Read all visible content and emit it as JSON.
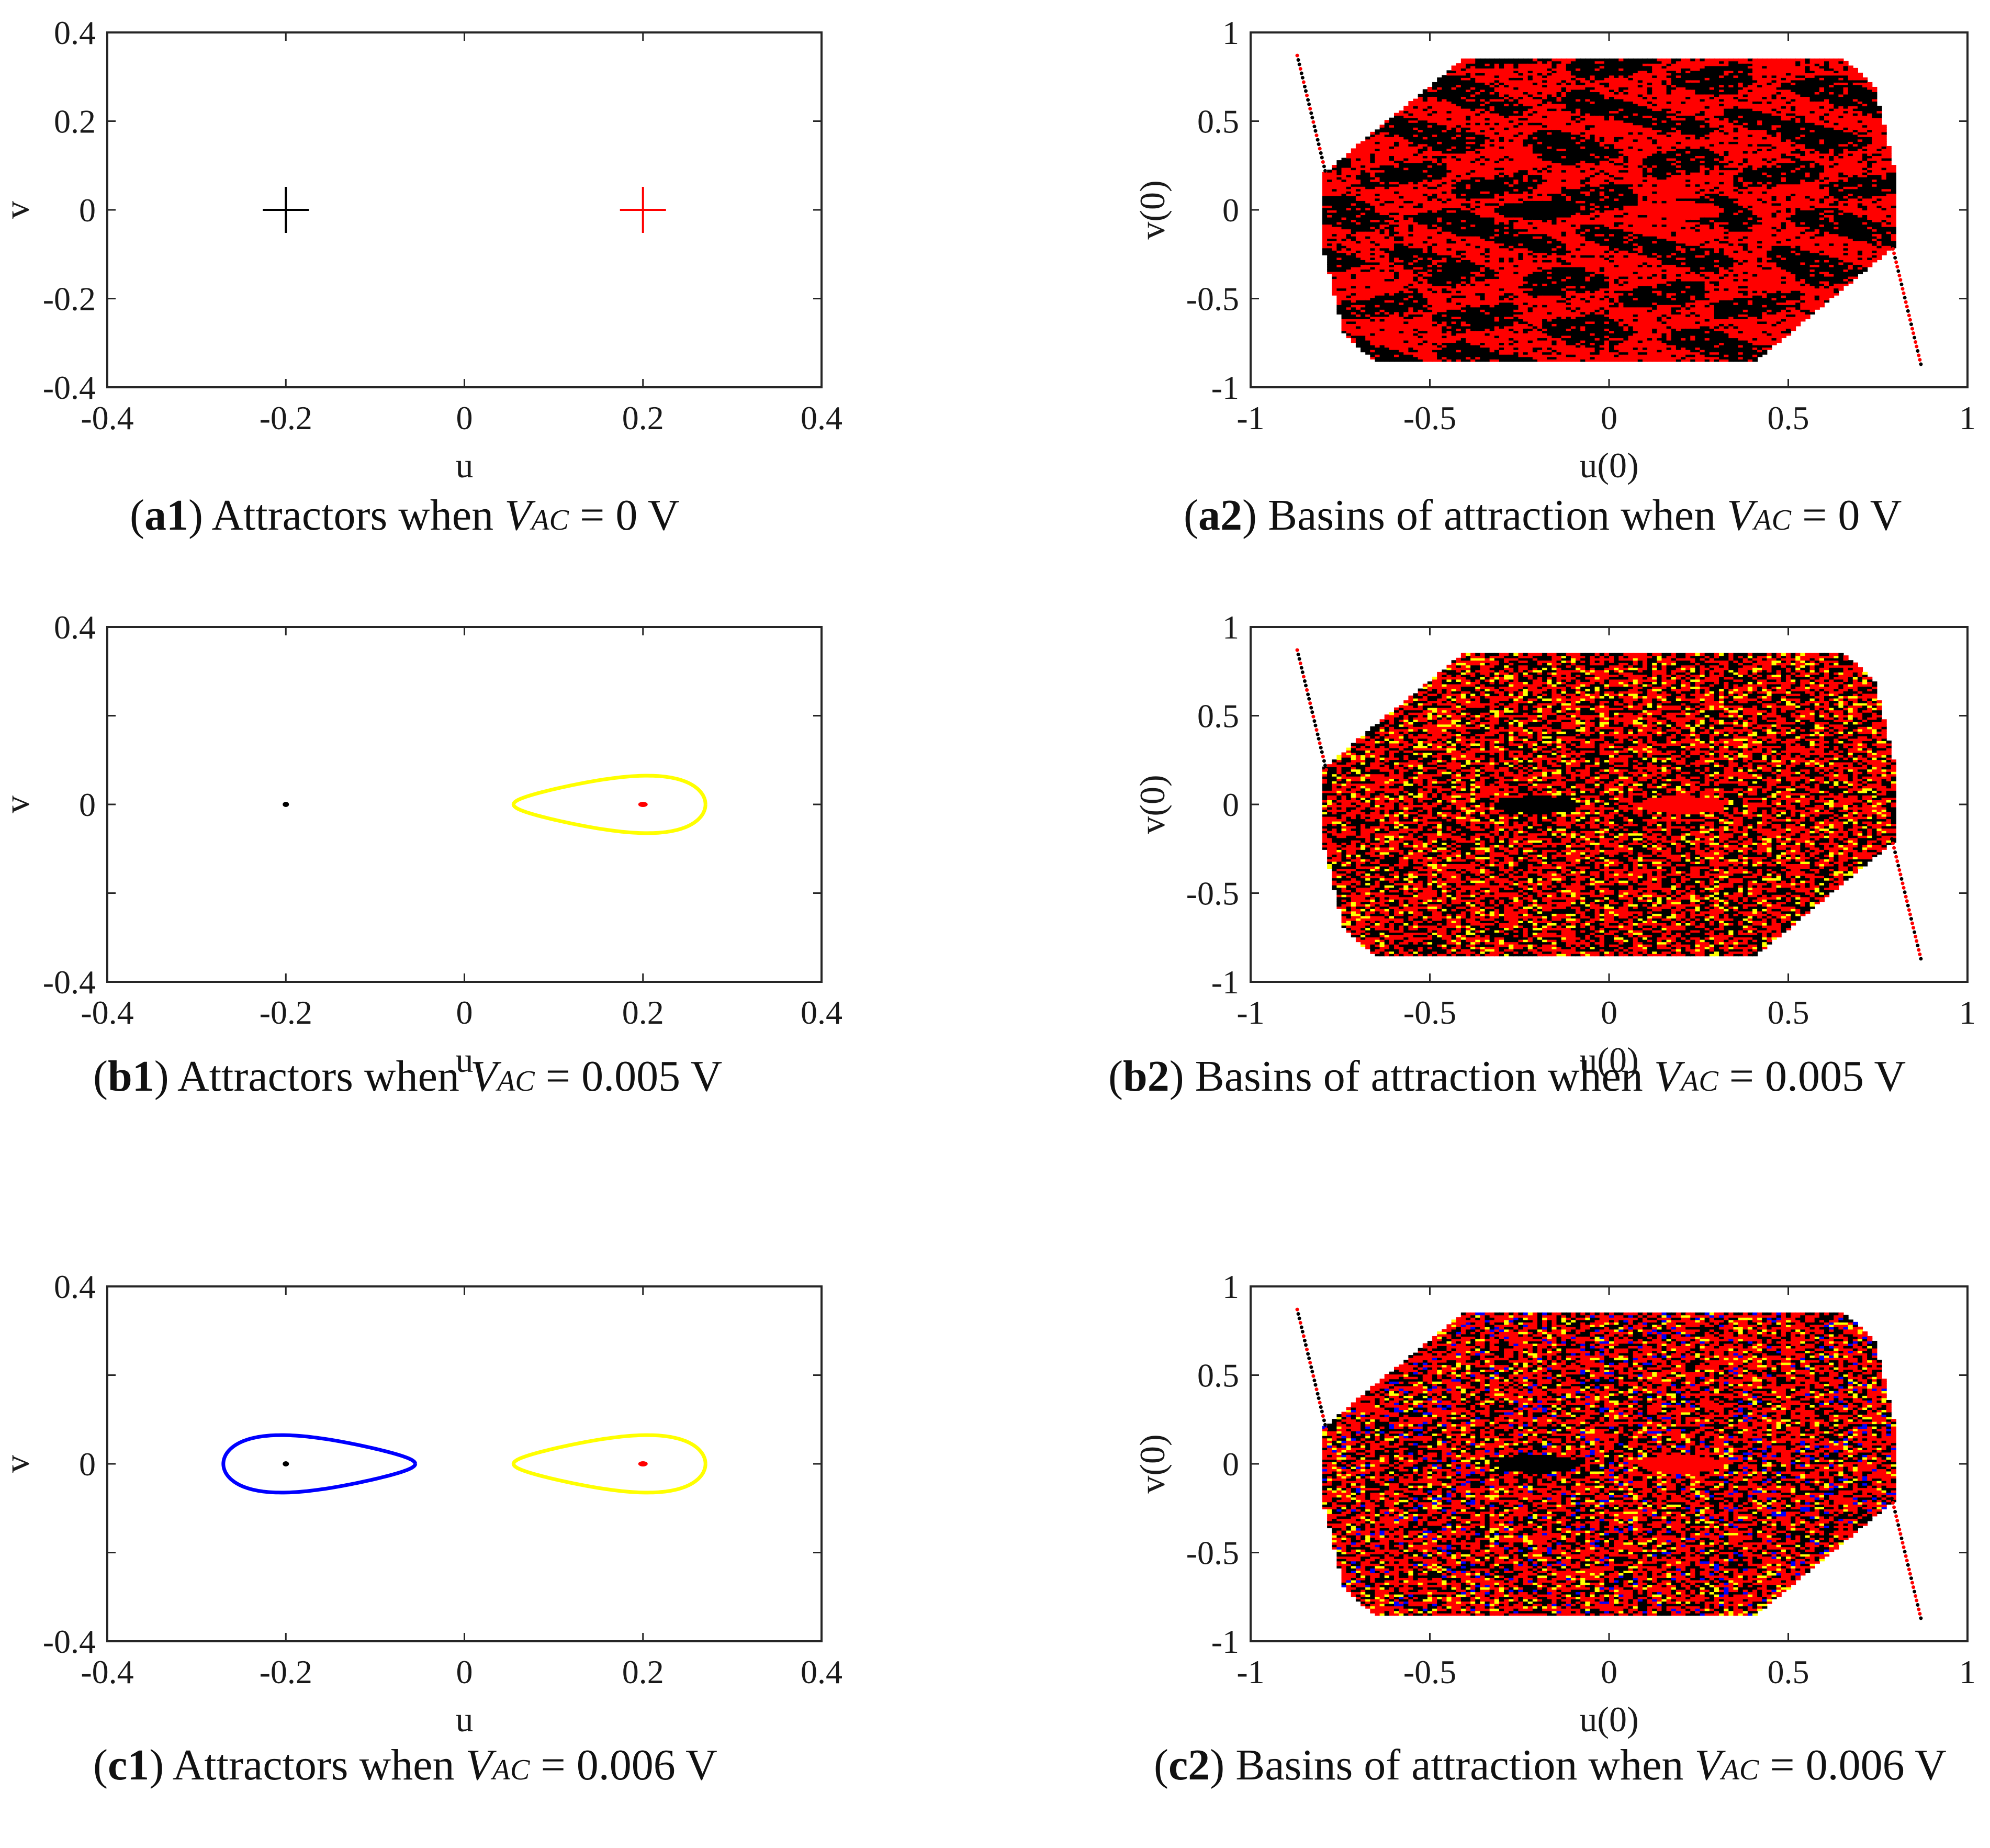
{
  "chart_data": [
    {
      "id": "a1",
      "type": "scatter",
      "caption": {
        "letter": "a1",
        "text": "Attractors when",
        "var": "V",
        "sub": "AC",
        "value": "= 0 V"
      },
      "xlabel": "u",
      "ylabel": "v",
      "xlim": [
        -0.4,
        0.4
      ],
      "ylim": [
        -0.4,
        0.4
      ],
      "xticks": [
        "-0.4",
        "-0.2",
        "0",
        "0.2",
        "0.4"
      ],
      "yticks": [
        "0.4",
        "0.2",
        "0",
        "-0.2",
        "-0.4"
      ],
      "grid": false,
      "markers": [
        {
          "x": -0.2,
          "y": 0,
          "style": "plus",
          "color": "#000000"
        },
        {
          "x": 0.2,
          "y": 0,
          "style": "plus",
          "color": "#ff0000"
        }
      ],
      "orbits": []
    },
    {
      "id": "a2",
      "type": "heatmap",
      "caption": {
        "letter": "a2",
        "text": "Basins of attraction when",
        "var": "V",
        "sub": "AC",
        "value": "= 0 V"
      },
      "xlabel": "u(0)",
      "ylabel": "v(0)",
      "xlim": [
        -1,
        1
      ],
      "ylim": [
        -1,
        1
      ],
      "xticks": [
        "-1",
        "-0.5",
        "0",
        "0.5",
        "1"
      ],
      "yticks": [
        "1",
        "0.5",
        "0",
        "-0.5",
        "-1"
      ],
      "grid": false,
      "basin_colors": [
        "#ff0000",
        "#000000"
      ]
    },
    {
      "id": "b1",
      "type": "scatter",
      "caption": {
        "letter": "b1",
        "text": "Attractors when",
        "var": "V",
        "sub": "AC",
        "value": "= 0.005 V"
      },
      "xlabel": "u",
      "ylabel": "v",
      "xlim": [
        -0.4,
        0.4
      ],
      "ylim": [
        -0.4,
        0.4
      ],
      "xticks": [
        "-0.4",
        "-0.2",
        "0",
        "0.2",
        "0.4"
      ],
      "yticks": [
        "0.4",
        "",
        "0",
        "",
        "-0.4"
      ],
      "grid": false,
      "markers": [
        {
          "x": -0.2,
          "y": 0,
          "style": "dot",
          "color": "#000000"
        },
        {
          "x": 0.2,
          "y": 0,
          "style": "dot",
          "color": "#ff0000"
        }
      ],
      "orbits": [
        {
          "center": 0.2,
          "u_min": 0.055,
          "u_max": 0.27,
          "v_amp": 0.078,
          "color": "#ffff00"
        }
      ]
    },
    {
      "id": "b2",
      "type": "heatmap",
      "caption": {
        "letter": "b2",
        "text": "Basins of attraction when",
        "var": "V",
        "sub": "AC",
        "value": "= 0.005 V"
      },
      "xlabel": "u(0)",
      "ylabel": "v(0)",
      "xlim": [
        -1,
        1
      ],
      "ylim": [
        -1,
        1
      ],
      "xticks": [
        "-1",
        "-0.5",
        "0",
        "0.5",
        "1"
      ],
      "yticks": [
        "1",
        "0.5",
        "0",
        "-0.5",
        "-1"
      ],
      "grid": false,
      "basin_colors": [
        "#ff0000",
        "#000000",
        "#ffff00"
      ]
    },
    {
      "id": "c1",
      "type": "scatter",
      "caption": {
        "letter": "c1",
        "text": "Attractors when",
        "var": "V",
        "sub": "AC",
        "value": "= 0.006 V"
      },
      "xlabel": "u",
      "ylabel": "v",
      "xlim": [
        -0.4,
        0.4
      ],
      "ylim": [
        -0.4,
        0.4
      ],
      "xticks": [
        "-0.4",
        "-0.2",
        "0",
        "0.2",
        "0.4"
      ],
      "yticks": [
        "0.4",
        "",
        "0",
        "",
        "-0.4"
      ],
      "grid": false,
      "markers": [
        {
          "x": -0.2,
          "y": 0,
          "style": "dot",
          "color": "#000000"
        },
        {
          "x": 0.2,
          "y": 0,
          "style": "dot",
          "color": "#ff0000"
        }
      ],
      "orbits": [
        {
          "center": -0.2,
          "u_min": -0.27,
          "u_max": -0.055,
          "v_amp": 0.078,
          "color": "#0000ff"
        },
        {
          "center": 0.2,
          "u_min": 0.055,
          "u_max": 0.27,
          "v_amp": 0.078,
          "color": "#ffff00"
        }
      ]
    },
    {
      "id": "c2",
      "type": "heatmap",
      "caption": {
        "letter": "c2",
        "text": "Basins of attraction when",
        "var": "V",
        "sub": "AC",
        "value": "= 0.006 V"
      },
      "xlabel": "u(0)",
      "ylabel": "v(0)",
      "xlim": [
        -1,
        1
      ],
      "ylim": [
        -1,
        1
      ],
      "xticks": [
        "-1",
        "-0.5",
        "0",
        "0.5",
        "1"
      ],
      "yticks": [
        "1",
        "0.5",
        "0",
        "-0.5",
        "-1"
      ],
      "grid": false,
      "basin_colors": [
        "#ff0000",
        "#000000",
        "#ffff00",
        "#0000ff"
      ]
    }
  ]
}
